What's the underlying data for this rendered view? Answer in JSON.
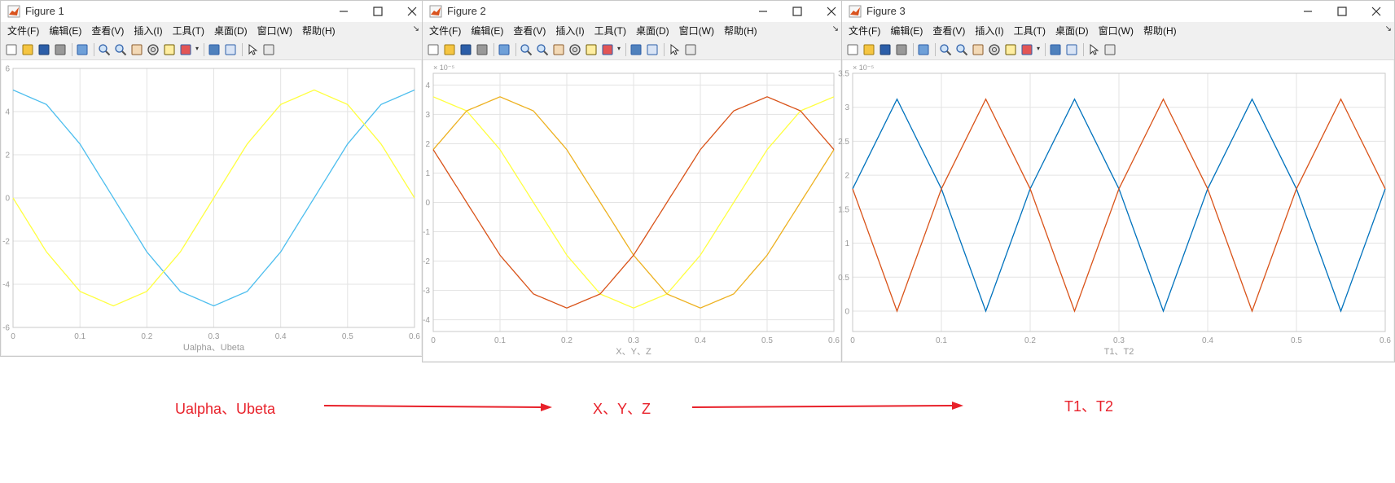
{
  "windows": [
    {
      "id": "fig1",
      "title": "Figure 1",
      "left": 0,
      "width": 519,
      "height": 438,
      "menu": [
        "文件(F)",
        "编辑(E)",
        "查看(V)",
        "插入(I)",
        "工具(T)",
        "桌面(D)",
        "窗口(W)",
        "帮助(H)"
      ]
    },
    {
      "id": "fig2",
      "title": "Figure 2",
      "left": 518,
      "width": 516,
      "height": 445,
      "menu": [
        "文件(F)",
        "编辑(E)",
        "查看(V)",
        "插入(I)",
        "工具(T)",
        "桌面(D)",
        "窗口(W)",
        "帮助(H)"
      ]
    },
    {
      "id": "fig3",
      "title": "Figure 3",
      "left": 1033,
      "width": 680,
      "height": 445,
      "menu": [
        "文件(F)",
        "编辑(E)",
        "查看(V)",
        "插入(I)",
        "工具(T)",
        "桌面(D)",
        "窗口(W)",
        "帮助(H)"
      ]
    }
  ],
  "chart_data": [
    {
      "type": "line",
      "xlabel": "Ualpha、Ubeta",
      "ylabel": "",
      "xlim": [
        0,
        0.6
      ],
      "ylim": [
        -6,
        6
      ],
      "xticks": [
        "0",
        "0.1",
        "0.2",
        "0.3",
        "0.4",
        "0.5",
        "0.6"
      ],
      "yticks": [
        "6",
        "4",
        "2",
        "0",
        "-2",
        "-4",
        "-6"
      ],
      "ytick_values": [
        6,
        4,
        2,
        0,
        -2,
        -4,
        -6
      ],
      "exponent": "",
      "grid": true,
      "x": [
        0,
        0.05,
        0.1,
        0.15,
        0.2,
        0.25,
        0.3,
        0.35,
        0.4,
        0.45,
        0.5,
        0.55,
        0.6
      ],
      "series": [
        {
          "color": "#4dbeee",
          "values": [
            5,
            4.33,
            2.5,
            0,
            -2.5,
            -4.33,
            -5,
            -4.33,
            -2.5,
            0,
            2.5,
            4.33,
            5
          ]
        },
        {
          "color": "#ffff40",
          "values": [
            0,
            -2.5,
            -4.33,
            -5,
            -4.33,
            -2.5,
            0,
            2.5,
            4.33,
            5,
            4.33,
            2.5,
            0
          ]
        }
      ]
    },
    {
      "type": "line",
      "xlabel": "X、Y、Z",
      "ylabel": "",
      "xlim": [
        0,
        0.6
      ],
      "ylim": [
        -4.4,
        4.4
      ],
      "xticks": [
        "0",
        "0.1",
        "0.2",
        "0.3",
        "0.4",
        "0.5",
        "0.6"
      ],
      "yticks": [
        "4",
        "3",
        "2",
        "1",
        "0",
        "-1",
        "-2",
        "-3",
        "-4"
      ],
      "ytick_values": [
        4,
        3,
        2,
        1,
        0,
        -1,
        -2,
        -3,
        -4
      ],
      "exponent": "× 10⁻⁵",
      "grid": true,
      "x": [
        0,
        0.05,
        0.1,
        0.15,
        0.2,
        0.25,
        0.3,
        0.35,
        0.4,
        0.45,
        0.5,
        0.55,
        0.6
      ],
      "series": [
        {
          "color": "#ffff40",
          "values": [
            3.6,
            3.12,
            1.8,
            0,
            -1.8,
            -3.12,
            -3.6,
            -3.12,
            -1.8,
            0,
            1.8,
            3.12,
            3.6
          ]
        },
        {
          "color": "#edb120",
          "values": [
            1.8,
            3.12,
            3.6,
            3.12,
            1.8,
            0,
            -1.8,
            -3.12,
            -3.6,
            -3.12,
            -1.8,
            0,
            1.8
          ]
        },
        {
          "color": "#d95319",
          "values": [
            1.8,
            0,
            -1.8,
            -3.12,
            -3.6,
            -3.12,
            -1.8,
            0,
            1.8,
            3.12,
            3.6,
            3.12,
            1.8
          ]
        }
      ]
    },
    {
      "type": "line",
      "xlabel": "T1、T2",
      "ylabel": "",
      "xlim": [
        0,
        0.6
      ],
      "ylim": [
        -0.3,
        3.5
      ],
      "xticks": [
        "0",
        "0.1",
        "0.2",
        "0.3",
        "0.4",
        "0.5",
        "0.6"
      ],
      "yticks": [
        "3.5",
        "3",
        "2.5",
        "2",
        "1.5",
        "1",
        "0.5",
        "0"
      ],
      "ytick_values": [
        3.5,
        3,
        2.5,
        2,
        1.5,
        1,
        0.5,
        0
      ],
      "exponent": "× 10⁻⁵",
      "grid": true,
      "x": [
        0,
        0.05,
        0.1,
        0.15,
        0.2,
        0.25,
        0.3,
        0.35,
        0.4,
        0.45,
        0.5,
        0.55,
        0.6
      ],
      "series": [
        {
          "color": "#0072bd",
          "values": [
            1.8,
            3.12,
            1.8,
            0,
            1.8,
            3.12,
            1.8,
            0,
            1.8,
            3.12,
            1.8,
            0,
            1.8
          ]
        },
        {
          "color": "#d95319",
          "values": [
            1.8,
            0,
            1.8,
            3.12,
            1.8,
            0,
            1.8,
            3.12,
            1.8,
            0,
            1.8,
            3.12,
            1.8
          ]
        }
      ]
    }
  ],
  "annotations": {
    "label1": "Ualpha、Ubeta",
    "label2": "X、Y、Z",
    "label3": "T1、T2"
  }
}
